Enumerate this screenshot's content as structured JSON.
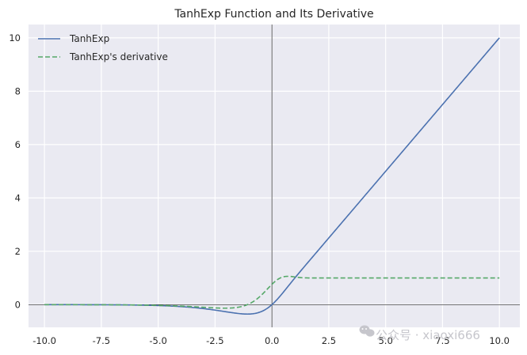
{
  "chart_data": {
    "type": "line",
    "title": "TanhExp Function and Its Derivative",
    "xlabel": "",
    "ylabel": "",
    "xlim": [
      -10.7,
      10.9
    ],
    "ylim": [
      -0.85,
      10.5
    ],
    "x_ticks": [
      -10.0,
      -7.5,
      -5.0,
      -2.5,
      0.0,
      2.5,
      5.0,
      7.5,
      10.0
    ],
    "x_tick_labels": [
      "-10.0",
      "-7.5",
      "-5.0",
      "-2.5",
      "0.0",
      "2.5",
      "5.0",
      "7.5",
      "10.0"
    ],
    "y_ticks": [
      0,
      2,
      4,
      6,
      8,
      10
    ],
    "y_tick_labels": [
      "0",
      "2",
      "4",
      "6",
      "8",
      "10"
    ],
    "grid": true,
    "axhline_y": 0,
    "axvline_x": 0,
    "legend_position": "top-left",
    "x_range": [
      -10,
      10
    ],
    "series": [
      {
        "name": "TanhExp",
        "function": "tanhexp",
        "color": "#4c72b0",
        "style": "solid"
      },
      {
        "name": "TanhExp's derivative",
        "function": "tanhexp_derivative",
        "color": "#55a868",
        "style": "dashed"
      }
    ]
  },
  "watermark": {
    "text": "公众号 · xiaoxi666",
    "icon": "wechat-icon"
  }
}
